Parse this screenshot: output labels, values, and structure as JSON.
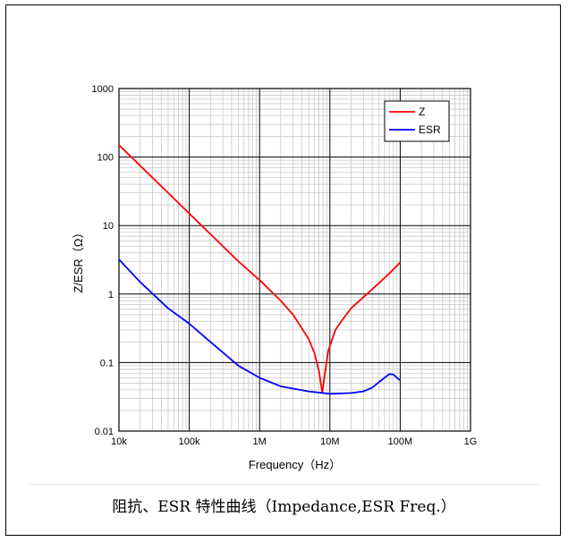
{
  "caption": "阻抗、ESR 特性曲线（Impedance,ESR Freq.）",
  "chart_data": {
    "type": "line",
    "xscale": "log",
    "yscale": "log",
    "xlim": [
      10000,
      1000000000
    ],
    "ylim": [
      0.01,
      1000
    ],
    "xlabel": "Frequency（Hz）",
    "ylabel": "Z/ESR（Ω）",
    "x_ticks": [
      {
        "value": 10000,
        "label": "10k"
      },
      {
        "value": 100000,
        "label": "100k"
      },
      {
        "value": 1000000,
        "label": "1M"
      },
      {
        "value": 10000000,
        "label": "10M"
      },
      {
        "value": 100000000,
        "label": "100M"
      },
      {
        "value": 1000000000,
        "label": "1G"
      }
    ],
    "y_ticks": [
      {
        "value": 0.01,
        "label": "0.01"
      },
      {
        "value": 0.1,
        "label": "0.1"
      },
      {
        "value": 1,
        "label": "1"
      },
      {
        "value": 10,
        "label": "10"
      },
      {
        "value": 100,
        "label": "100"
      },
      {
        "value": 1000,
        "label": "1000"
      }
    ],
    "grid": true,
    "legend_position": "top-right",
    "series": [
      {
        "name": "Z",
        "color": "#ff0000",
        "points": [
          [
            10000,
            150
          ],
          [
            20000,
            75
          ],
          [
            50000,
            30
          ],
          [
            100000,
            15
          ],
          [
            200000,
            7.5
          ],
          [
            500000,
            3.0
          ],
          [
            1000000,
            1.6
          ],
          [
            2000000,
            0.8
          ],
          [
            3000000,
            0.5
          ],
          [
            5000000,
            0.22
          ],
          [
            6000000,
            0.14
          ],
          [
            7000000,
            0.075
          ],
          [
            7800000,
            0.036
          ],
          [
            8500000,
            0.07
          ],
          [
            9500000,
            0.15
          ],
          [
            12000000,
            0.3
          ],
          [
            15000000,
            0.42
          ],
          [
            20000000,
            0.62
          ],
          [
            30000000,
            0.9
          ],
          [
            50000000,
            1.45
          ],
          [
            70000000,
            2.0
          ],
          [
            100000000,
            2.9
          ]
        ]
      },
      {
        "name": "ESR",
        "color": "#0000ff",
        "points": [
          [
            10000,
            3.2
          ],
          [
            20000,
            1.5
          ],
          [
            50000,
            0.62
          ],
          [
            100000,
            0.37
          ],
          [
            200000,
            0.2
          ],
          [
            500000,
            0.09
          ],
          [
            1000000,
            0.06
          ],
          [
            2000000,
            0.045
          ],
          [
            5000000,
            0.038
          ],
          [
            10000000,
            0.035
          ],
          [
            20000000,
            0.036
          ],
          [
            30000000,
            0.038
          ],
          [
            40000000,
            0.043
          ],
          [
            50000000,
            0.052
          ],
          [
            60000000,
            0.06
          ],
          [
            70000000,
            0.068
          ],
          [
            80000000,
            0.067
          ],
          [
            90000000,
            0.06
          ],
          [
            100000000,
            0.055
          ]
        ]
      }
    ]
  }
}
